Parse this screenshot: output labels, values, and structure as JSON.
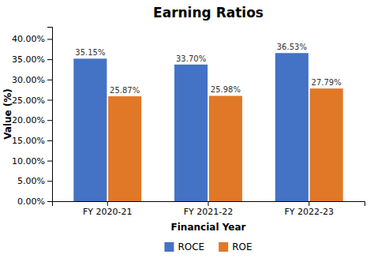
{
  "chart_data": {
    "type": "bar",
    "title": "Earning Ratios",
    "xlabel": "Financial Year",
    "ylabel": "Value (%)",
    "categories": [
      "FY 2020-21",
      "FY 2021-22",
      "FY 2022-23"
    ],
    "series": [
      {
        "name": "ROCE",
        "color": "#4472C4",
        "values": [
          35.15,
          33.7,
          36.53
        ],
        "value_labels": [
          "35.15%",
          "33.70%",
          "36.53%"
        ]
      },
      {
        "name": "ROE",
        "color": "#E07828",
        "values": [
          25.87,
          25.98,
          27.79
        ],
        "value_labels": [
          "25.87%",
          "25.98%",
          "27.79%"
        ]
      }
    ],
    "ylim": [
      0,
      43
    ],
    "yticks": [
      {
        "value": 0,
        "label": "0.00%"
      },
      {
        "value": 5,
        "label": "5.00%"
      },
      {
        "value": 10,
        "label": "10.00%"
      },
      {
        "value": 15,
        "label": "15.00%"
      },
      {
        "value": 20,
        "label": "20.00%"
      },
      {
        "value": 25,
        "label": "25.00%"
      },
      {
        "value": 30,
        "label": "30.00%"
      },
      {
        "value": 35,
        "label": "35.00%"
      },
      {
        "value": 40,
        "label": "40.00%"
      }
    ],
    "grid": false,
    "data_labels": true,
    "legend": "bottom"
  }
}
